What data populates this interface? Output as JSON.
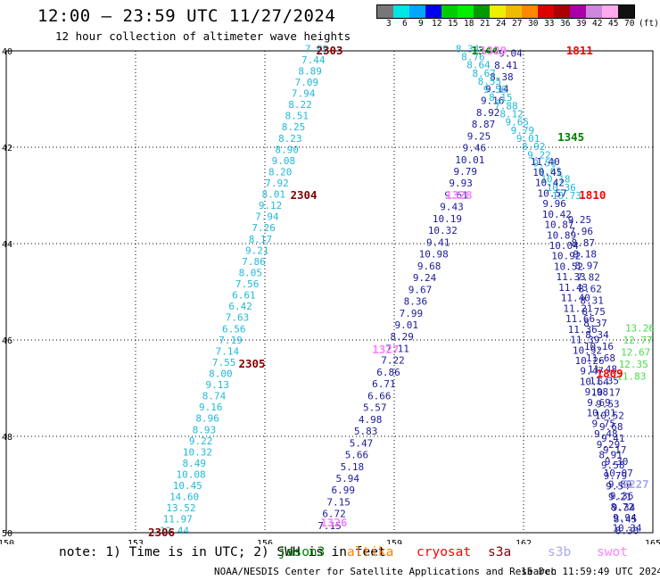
{
  "header": {
    "title": "12:00 – 23:59 UTC 11/27/2024",
    "subtitle": "12 hour collection of altimeter wave heights"
  },
  "scale": {
    "colors": [
      "#777777",
      "#00e5e5",
      "#00a6ff",
      "#0000ee",
      "#00cc00",
      "#00ee00",
      "#009900",
      "#eeee00",
      "#eebb00",
      "#ff8800",
      "#dd0000",
      "#aa0000",
      "#aa00aa",
      "#cc88dd",
      "#ffaaee",
      "#111111"
    ],
    "labels": [
      "3",
      "6",
      "9",
      "12",
      "15",
      "18",
      "21",
      "24",
      "27",
      "30",
      "33",
      "36",
      "39",
      "42",
      "45",
      "70",
      "(ft)"
    ]
  },
  "map": {
    "lon_ticks": [
      "150",
      "153",
      "156",
      "159",
      "162",
      "165"
    ],
    "lat_ticks": [
      "40",
      "42",
      "44",
      "46",
      "48",
      "50"
    ],
    "lat_min": 40,
    "lat_max": 50,
    "lon_min": 150,
    "lon_max": 165
  },
  "tracks": {
    "label_colors": {
      "darkred": "#800000",
      "red": "#ff0000",
      "green": "#008000",
      "pink": "#ff80ff",
      "lightblue": "#aaaaee",
      "orange": "#ff8000"
    },
    "pass_ids": [
      {
        "id": "2303",
        "color": "darkred",
        "lon": 157.5,
        "lat": 40.0
      },
      {
        "id": "2304",
        "color": "darkred",
        "lon": 156.9,
        "lat": 43.0
      },
      {
        "id": "2305",
        "color": "darkred",
        "lon": 155.7,
        "lat": 46.5
      },
      {
        "id": "2306",
        "color": "darkred",
        "lon": 153.6,
        "lat": 50.0
      },
      {
        "id": "1344",
        "color": "green",
        "lon": 161.1,
        "lat": 40.0
      },
      {
        "id": "1345",
        "color": "green",
        "lon": 163.1,
        "lat": 41.8
      },
      {
        "id": "1811",
        "color": "red",
        "lon": 163.3,
        "lat": 40.0
      },
      {
        "id": "1810",
        "color": "red",
        "lon": 163.6,
        "lat": 43.0
      },
      {
        "id": "1809",
        "color": "red",
        "lon": 164.0,
        "lat": 46.7
      },
      {
        "id": "1328",
        "color": "pink",
        "lon": 160.5,
        "lat": 43.0
      },
      {
        "id": "1327",
        "color": "pink",
        "lon": 158.8,
        "lat": 46.2
      },
      {
        "id": "1326",
        "color": "pink",
        "lon": 157.6,
        "lat": 49.8
      },
      {
        "id": "1329",
        "color": "pink",
        "lon": 161.3,
        "lat": 40.0
      },
      {
        "id": "2227",
        "color": "lightblue",
        "lon": 164.6,
        "lat": 49.0
      }
    ],
    "track_a": {
      "color": "#22b8d8",
      "values": [
        "7.99",
        "7.44",
        "8.89",
        "7.09",
        "7.94",
        "8.22",
        "8.51",
        "8.25",
        "8.23",
        "8.90",
        "9.08",
        "8.20",
        "7.92",
        "8.01",
        "9.12",
        "7.94",
        "7.26",
        "8.17",
        "9.21",
        "7.86",
        "8.05",
        "7.56",
        "6.61",
        "6.42",
        "7.63",
        "6.56",
        "7.19",
        "7.14",
        "7.55",
        "8.00",
        "9.13",
        "8.74",
        "9.16",
        "8.96",
        "8.93",
        "9.22",
        "10.32",
        "8.49",
        "10.08",
        "10.45",
        "14.60",
        "13.52",
        "11.97",
        "12.44"
      ]
    },
    "track_b": {
      "color": "#1a1a9a",
      "values": [
        "9.04",
        "8.41",
        "8.38",
        "9.14",
        "9.16",
        "8.92",
        "8.87",
        "9.25",
        "9.46",
        "10.01",
        "9.79",
        "9.93",
        "9.61",
        "9.43",
        "10.19",
        "10.32",
        "9.41",
        "10.98",
        "9.68",
        "9.24",
        "9.67",
        "8.36",
        "7.99",
        "9.01",
        "8.29",
        "7.11",
        "7.22",
        "6.86",
        "6.71",
        "6.66",
        "5.57",
        "4.98",
        "5.83",
        "5.47",
        "5.66",
        "5.18",
        "5.94",
        "6.99",
        "7.15",
        "6.72",
        "7.15"
      ]
    },
    "track_c": {
      "color": "#22b8d8",
      "values": [
        "8.34",
        "8.76",
        "8.64",
        "8.67",
        "8.55",
        "9.56",
        "8.15",
        "7.88",
        "8.12",
        "9.65",
        "9.79",
        "9.01",
        "8.92",
        "9.22",
        "9.51",
        "9.61",
        "10.18",
        "10.36",
        "10.73"
      ]
    },
    "track_d": {
      "color": "#1a1a9a",
      "values": [
        "11.40",
        "10.45",
        "10.42",
        "10.57",
        "9.96",
        "10.42",
        "10.87",
        "10.89",
        "10.04",
        "10.92",
        "10.52",
        "11.33",
        "11.43",
        "11.40",
        "11.21",
        "11.66",
        "11.36",
        "11.39",
        "10.92",
        "10.26",
        "9.47",
        "10.64",
        "9.98",
        "9.69",
        "10.01",
        "9.75",
        "9.48",
        "9.29",
        "8.91",
        "9.58",
        "9.79",
        "9.54",
        "9.21",
        "8.72",
        "9.94",
        "10.34"
      ]
    },
    "track_e": {
      "color": "#1a1a9a",
      "values": [
        "9.25",
        "7.96",
        "8.87",
        "9.18",
        "8.97",
        "7.82",
        "8.62",
        "8.31",
        "8.75",
        "8.37",
        "8.34",
        "10.16",
        "11.68",
        "11.48",
        "11.35",
        "10.17",
        "9.53",
        "10.52",
        "9.68",
        "9.41",
        "9.17",
        "9.30",
        "10.07",
        "9.89",
        "9.36",
        "9.34",
        "8.45",
        "8.30"
      ]
    },
    "green_vals": [
      "13.26",
      "12.77",
      "12.67",
      "12.35",
      "11.83"
    ]
  },
  "legend": {
    "note": "note:  1) Time is in UTC; 2) SWH is in feet",
    "sats": [
      {
        "name": "jason3",
        "color": "#008000"
      },
      {
        "name": "altika",
        "color": "#ff8000"
      },
      {
        "name": "cryosat",
        "color": "#ff0000"
      },
      {
        "name": "s3a",
        "color": "#800000"
      },
      {
        "name": "s3b",
        "color": "#aaaaee"
      },
      {
        "name": "swot",
        "color": "#ff80ff"
      }
    ]
  },
  "footer": {
    "left": "NOAA/NESDIS Center for Satellite Applications and Research",
    "right": "15 Dec 11:59:49 UTC 2024"
  }
}
